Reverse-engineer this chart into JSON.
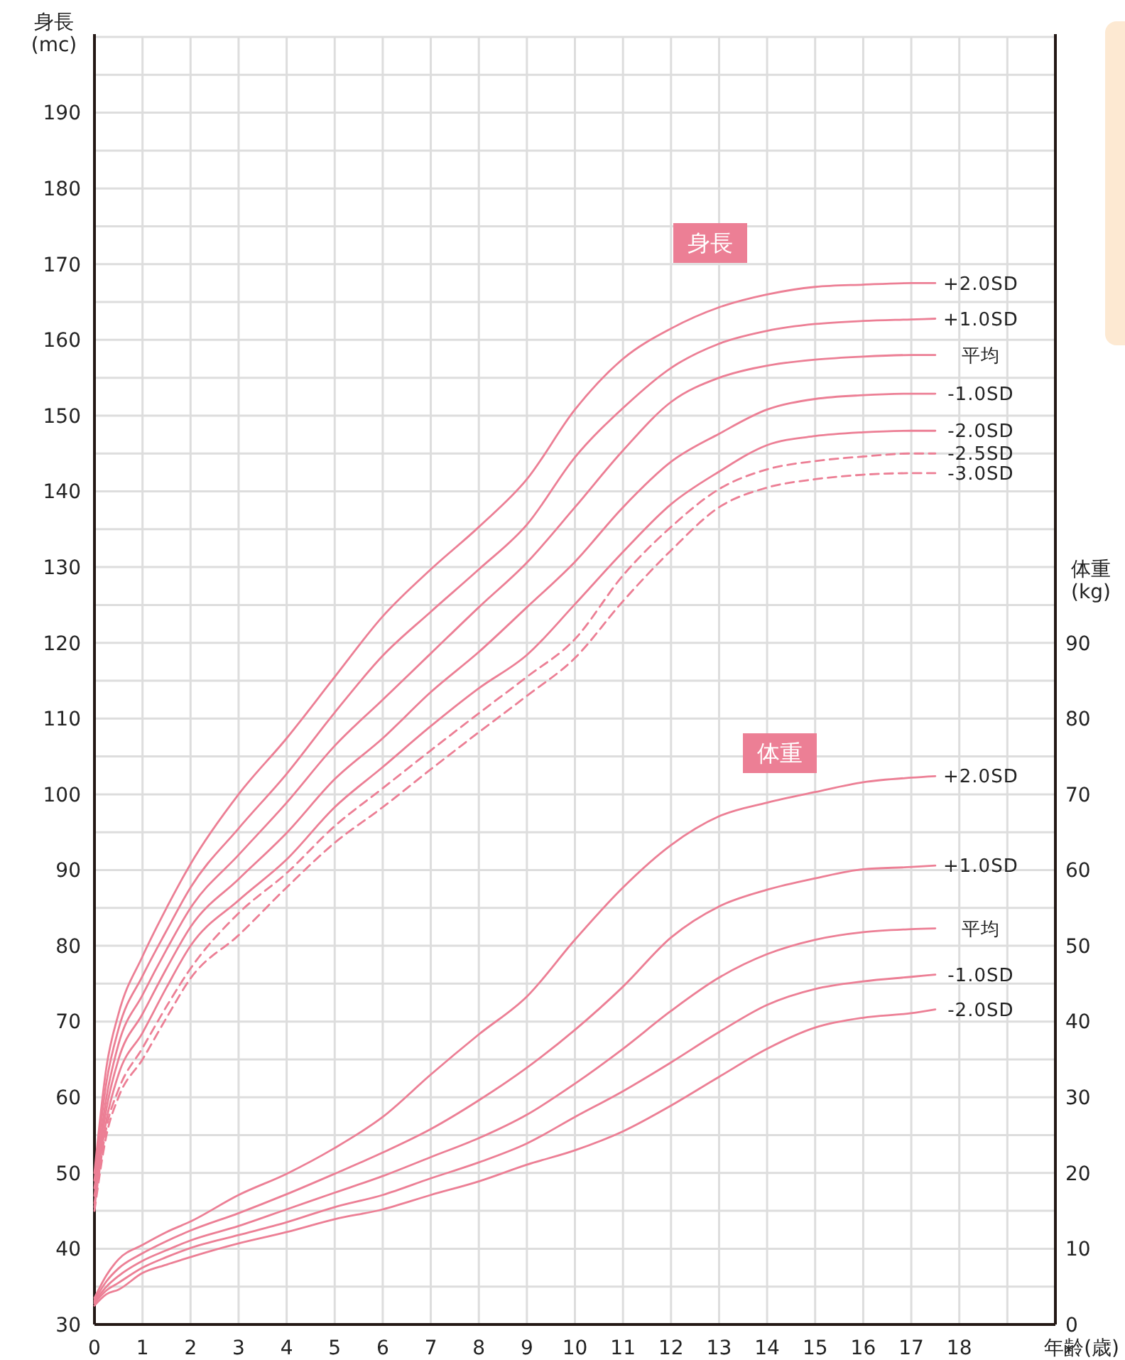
{
  "chart_data": {
    "type": "line",
    "xlabel": "年齢(歳)",
    "ylabel": "身長\n(mc)",
    "y2label": "体重\n(kg)",
    "x": [
      0,
      0.25,
      0.5,
      1,
      1.5,
      2,
      3,
      4,
      5,
      6,
      7,
      8,
      9,
      10,
      11,
      12,
      13,
      14,
      15,
      16,
      17,
      17.5
    ],
    "xlim": [
      0,
      20
    ],
    "xticks": [
      0,
      1,
      2,
      3,
      4,
      5,
      6,
      7,
      8,
      9,
      10,
      11,
      12,
      13,
      14,
      15,
      16,
      17,
      18
    ],
    "ylim": [
      30,
      200
    ],
    "yticks": [
      30,
      40,
      50,
      60,
      70,
      80,
      90,
      100,
      110,
      120,
      130,
      140,
      150,
      160,
      170,
      180,
      190
    ],
    "y2lim": [
      0,
      170
    ],
    "y2ticks": [
      0,
      10,
      20,
      30,
      40,
      50,
      60,
      70,
      80,
      90
    ],
    "grid": true,
    "marker": "none",
    "line_style": "solid",
    "annotations": [
      "身長",
      "体重"
    ],
    "series": [
      {
        "name": "+2.0SD",
        "color": "#ec7f95",
        "values": [
          50,
          64,
          71,
          78.6,
          85,
          90.8,
          100,
          107.4,
          115.5,
          123.5,
          129.7,
          135.3,
          141.6,
          150.8,
          157.5,
          161.5,
          164.3,
          166,
          167,
          167.3,
          167.5,
          167.5
        ]
      },
      {
        "name": "+1.0SD",
        "color": "#ec7f95",
        "values": [
          49,
          62,
          69,
          76,
          82,
          87.7,
          95.5,
          102.7,
          110.8,
          118.3,
          124.1,
          129.7,
          135.6,
          144.5,
          151,
          156.3,
          159.5,
          161.2,
          162.1,
          162.5,
          162.7,
          162.8
        ]
      },
      {
        "name": "平均",
        "color": "#ec7f95",
        "values": [
          48,
          60,
          67,
          73.5,
          79.5,
          85,
          92,
          98.9,
          106.4,
          112.5,
          118.6,
          124.7,
          130.6,
          137.9,
          145.4,
          151.8,
          155,
          156.6,
          157.4,
          157.8,
          158,
          158
        ]
      },
      {
        "name": "-1.0SD",
        "color": "#ec7f95",
        "values": [
          47,
          58.5,
          65,
          71,
          77,
          82.5,
          88.8,
          94.9,
          102,
          107.4,
          113.5,
          118.8,
          124.7,
          130.7,
          137.9,
          143.9,
          147.6,
          150.8,
          152.2,
          152.7,
          152.9,
          152.9
        ]
      },
      {
        "name": "-2.0SD",
        "color": "#ec7f95",
        "values": [
          46,
          57,
          63,
          68.5,
          74.5,
          80,
          86,
          91.4,
          98.3,
          103.6,
          109,
          114,
          118.4,
          125.1,
          132,
          138.3,
          142.6,
          146.1,
          147.3,
          147.8,
          148,
          148
        ]
      },
      {
        "name": "-2.5SD",
        "color": "#ec7f95",
        "line_style": "dashed",
        "values": [
          45.5,
          56,
          61,
          66.5,
          72,
          77,
          84.3,
          89.6,
          95.8,
          100.8,
          105.8,
          110.7,
          115.5,
          120.5,
          128.9,
          135.3,
          140.3,
          142.9,
          144,
          144.6,
          145,
          145
        ]
      },
      {
        "name": "-3.0SD",
        "color": "#ec7f95",
        "line_style": "dashed",
        "values": [
          45,
          55,
          60,
          65,
          70.5,
          75.7,
          81.4,
          87.7,
          93.6,
          98.3,
          103.3,
          108.2,
          113,
          118,
          125.5,
          132.2,
          137.9,
          140.5,
          141.6,
          142.2,
          142.4,
          142.4
        ]
      },
      {
        "name": "+2.0SD",
        "color": "#ec7f95",
        "axis": "y2",
        "values": [
          3.5,
          6.5,
          8.6,
          10.5,
          12.2,
          13.6,
          17.1,
          19.9,
          23.3,
          27.4,
          33,
          38.3,
          43.3,
          50.8,
          57.7,
          63.3,
          67.1,
          68.9,
          70.3,
          71.6,
          72.2,
          72.4
        ]
      },
      {
        "name": "+1.0SD",
        "color": "#ec7f95",
        "axis": "y2",
        "values": [
          3.2,
          5.7,
          7.4,
          9.4,
          11,
          12.4,
          14.7,
          17.2,
          19.9,
          22.7,
          25.8,
          29.6,
          33.9,
          38.9,
          44.6,
          51.1,
          55.2,
          57.4,
          58.9,
          60.1,
          60.4,
          60.6
        ]
      },
      {
        "name": "平均",
        "color": "#ec7f95",
        "axis": "y2",
        "values": [
          3,
          5,
          6.4,
          8.4,
          9.8,
          11.1,
          13,
          15.2,
          17.4,
          19.6,
          22.1,
          24.6,
          27.7,
          31.8,
          36.4,
          41.4,
          45.8,
          48.9,
          50.8,
          51.8,
          52.2,
          52.3
        ]
      },
      {
        "name": "-1.0SD",
        "color": "#ec7f95",
        "axis": "y2",
        "values": [
          2.8,
          4.5,
          5.5,
          7.5,
          8.9,
          10.1,
          11.8,
          13.5,
          15.5,
          17.1,
          19.3,
          21.4,
          23.9,
          27.4,
          30.8,
          34.6,
          38.6,
          42.2,
          44.3,
          45.3,
          45.9,
          46.2
        ]
      },
      {
        "name": "-2.0SD",
        "color": "#ec7f95",
        "axis": "y2",
        "values": [
          2.5,
          4,
          4.6,
          6.8,
          7.9,
          8.9,
          10.7,
          12.2,
          13.9,
          15.2,
          17.1,
          18.9,
          21.1,
          23,
          25.5,
          28.9,
          32.7,
          36.4,
          39.2,
          40.5,
          41.1,
          41.6
        ]
      }
    ]
  }
}
